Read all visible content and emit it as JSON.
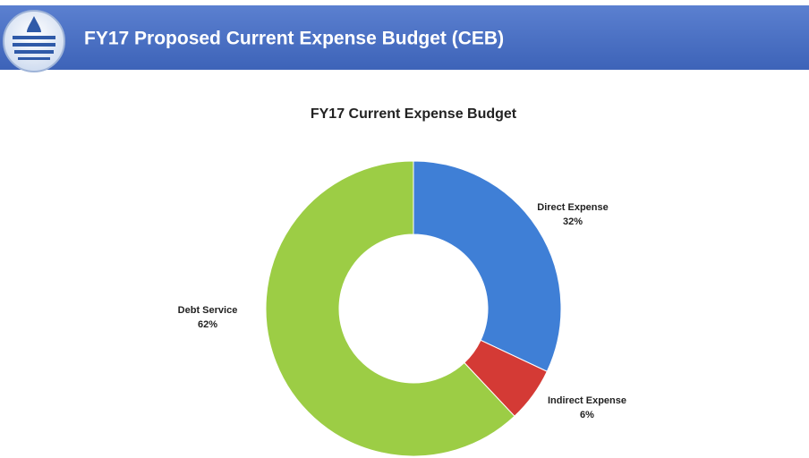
{
  "slide_title": "FY17 Proposed Current Expense Budget (CEB)",
  "chart_data": {
    "type": "donut",
    "title": "FY17 Current Expense Budget",
    "categories": [
      "Direct Expense",
      "Indirect Expense",
      "Debt Service"
    ],
    "values": [
      32,
      6,
      62
    ],
    "value_labels": [
      "32%",
      "6%",
      "62%"
    ],
    "colors": [
      "#3f7fd6",
      "#d43a35",
      "#9ccd45"
    ]
  }
}
